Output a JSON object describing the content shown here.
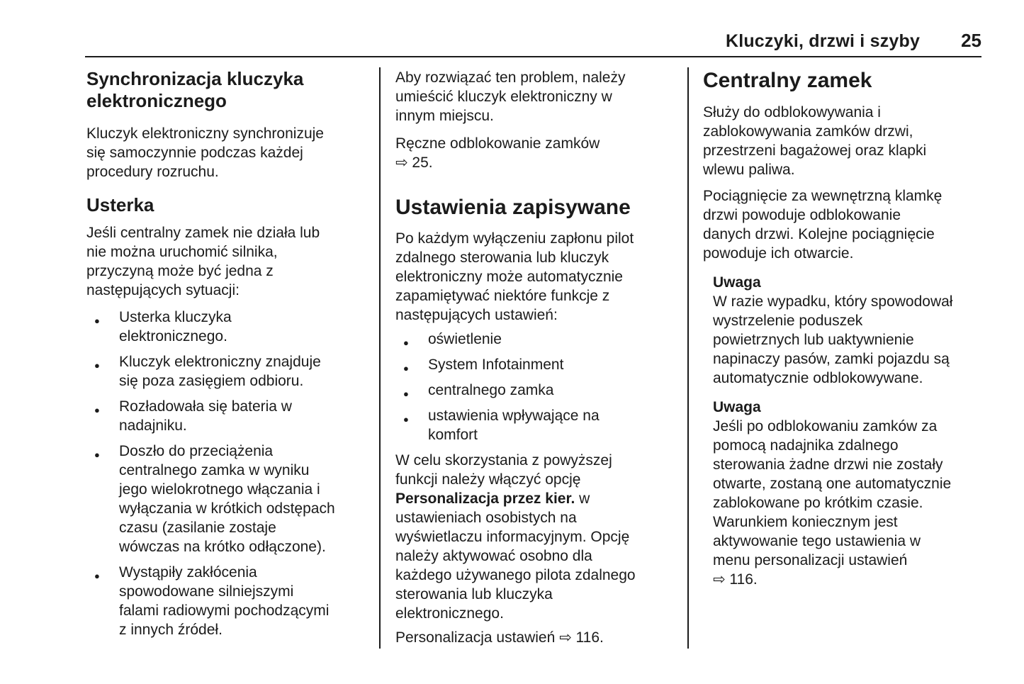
{
  "header": {
    "section_title": "Kluczyki, drzwi i szyby",
    "page_number": "25"
  },
  "col1": {
    "heading": "Synchronizacja kluczyka\nelektronicznego",
    "para1": "Kluczyk elektroniczny synchronizuje\nsię samoczynnie podczas każdej\nprocedury rozruchu.",
    "heading2": "Usterka",
    "para2": "Jeśli centralny zamek nie działa lub\nnie można uruchomić silnika,\nprzyczyną może być jedna z\nnastępujących sytuacji:",
    "bullets": [
      "Usterka kluczyka\nelektronicznego.",
      "Kluczyk elektroniczny znajduje\nsię poza zasięgiem odbioru.",
      "Rozładowała się bateria w\nnadajniku.",
      "Doszło do przeciążenia\ncentralnego zamka w wyniku\njego wielokrotnego włączania i\nwyłączania w krótkich odstępach\nczasu (zasilanie zostaje\nwówczas na krótko odłączone).",
      "Wystąpiły zakłócenia\nspowodowane silniejszymi\nfalami radiowymi pochodzącymi\nz innych źródeł."
    ]
  },
  "col2": {
    "para1": "Aby rozwiązać ten problem, należy\numieścić kluczyk elektroniczny w\ninnym miejscu.",
    "ref1": "Ręczne odblokowanie zamków\n⇨ 25.",
    "heading": "Ustawienia zapisywane",
    "para2": "Po każdym wyłączeniu zapłonu pilot\nzdalnego sterowania lub kluczyk\nelektroniczny może automatycznie\nzapamiętywać niektóre funkcje z\nnastępujących ustawień:",
    "bullets": [
      "oświetlenie",
      "System Infotainment",
      "centralnego zamka",
      "ustawienia wpływające na\nkomfort"
    ],
    "para3_pre": "W celu skorzystania z powyższej\nfunkcji należy włączyć opcję\n",
    "para3_bold": "Personalizacja przez kier.",
    "para3_post": " w\nustawieniach osobistych na\nwyświetlaczu informacyjnym. Opcję\nnależy aktywować osobno dla\nkażdego używanego pilota zdalnego\nsterowania lub kluczyka\nelektronicznego.",
    "ref2": "Personalizacja ustawień ⇨ 116."
  },
  "col3": {
    "heading": "Centralny zamek",
    "para1": "Służy do odblokowywania i\nzablokowywania zamków drzwi,\nprzestrzeni bagażowej oraz klapki\nwlewu paliwa.",
    "para2": "Pociągnięcie za wewnętrzną klamkę\ndrzwi powoduje odblokowanie\ndanych drzwi. Kolejne pociągnięcie\npowoduje ich otwarcie.",
    "notes": [
      {
        "label": "Uwaga",
        "text": "W razie wypadku, który spowodował\nwystrzelenie poduszek\npowietrznych lub uaktywnienie\nnapinaczy pasów, zamki pojazdu są\nautomatycznie odblokowywane."
      },
      {
        "label": "Uwaga",
        "text": "Jeśli po odblokowaniu zamków za\npomocą nadajnika zdalnego\nsterowania żadne drzwi nie zostały\notwarte, zostaną one automatycznie\nzablokowane po krótkim czasie.\nWarunkiem koniecznym jest\naktywowanie tego ustawienia w\nmenu personalizacji ustawień\n⇨ 116."
      }
    ]
  },
  "colors": {
    "text": "#1b1b1b",
    "background": "#ffffff",
    "rule": "#1b1b1b"
  }
}
